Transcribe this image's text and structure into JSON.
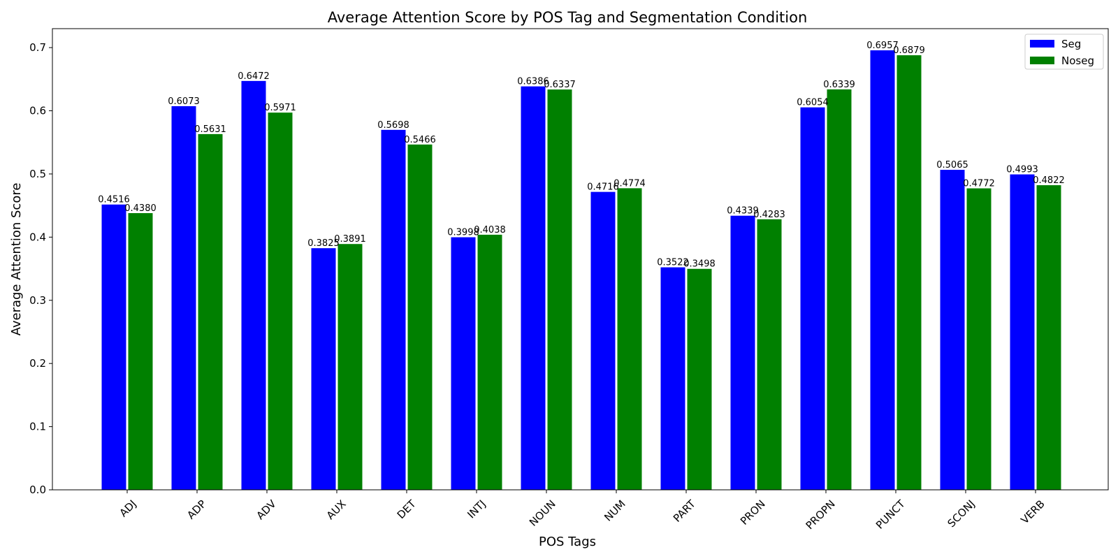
{
  "chart_data": {
    "type": "bar",
    "title": "Average Attention Score by POS Tag and Segmentation Condition",
    "xlabel": "POS Tags",
    "ylabel": "Average Attention Score",
    "categories": [
      "ADJ",
      "ADP",
      "ADV",
      "AUX",
      "DET",
      "INTJ",
      "NOUN",
      "NUM",
      "PART",
      "PRON",
      "PROPN",
      "PUNCT",
      "SCONJ",
      "VERB"
    ],
    "series": [
      {
        "name": "Seg",
        "color": "#0000ff",
        "values": [
          0.4516,
          0.6073,
          0.6472,
          0.3825,
          0.5698,
          0.3998,
          0.6386,
          0.4716,
          0.3522,
          0.4339,
          0.6054,
          0.6957,
          0.5065,
          0.4993
        ],
        "labels": [
          "0.4516",
          "0.6073",
          "0.6472",
          "0.3825",
          "0.5698",
          "0.3998",
          "0.6386",
          "0.4716",
          "0.3522",
          "0.4339",
          "0.6054",
          "0.6957",
          "0.5065",
          "0.4993"
        ]
      },
      {
        "name": "Noseg",
        "color": "#008000",
        "values": [
          0.438,
          0.5631,
          0.5971,
          0.3891,
          0.5466,
          0.4038,
          0.6337,
          0.4774,
          0.3498,
          0.4283,
          0.6339,
          0.6879,
          0.4772,
          0.4822
        ],
        "labels": [
          "0.4380",
          "0.5631",
          "0.5971",
          "0.3891",
          "0.5466",
          "0.4038",
          "0.6337",
          "0.4774",
          "0.3498",
          "0.4283",
          "0.6339",
          "0.6879",
          "0.4772",
          "0.4822"
        ]
      }
    ],
    "ylim": [
      0,
      0.73
    ],
    "yticks": [
      "0.0",
      "0.1",
      "0.2",
      "0.3",
      "0.4",
      "0.5",
      "0.6",
      "0.7"
    ],
    "grid": false,
    "legend_position": "top-right"
  }
}
